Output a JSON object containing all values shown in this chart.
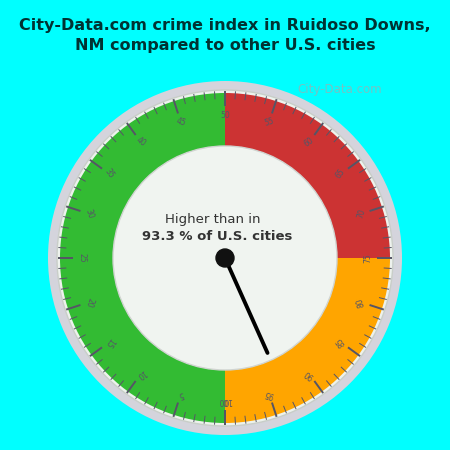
{
  "title_line1": "City-Data.com crime index in Ruidoso Downs,",
  "title_line2": "NM compared to other U.S. cities",
  "title_color": "#003333",
  "bg_color": "#00FFFF",
  "inner_bg_color": "#e8f0e8",
  "center_text_line1": "Higher than in",
  "center_text_line2": "93.3 % of U.S. cities",
  "needle_value": 93.3,
  "green_color": "#33BB33",
  "orange_color": "#FFA500",
  "red_color": "#CC3333",
  "ring_outer_color": "#d0d0d8",
  "ring_inner_color": "#e8ece8",
  "watermark": "City-Data.com",
  "scale_min": 0,
  "scale_max": 100
}
